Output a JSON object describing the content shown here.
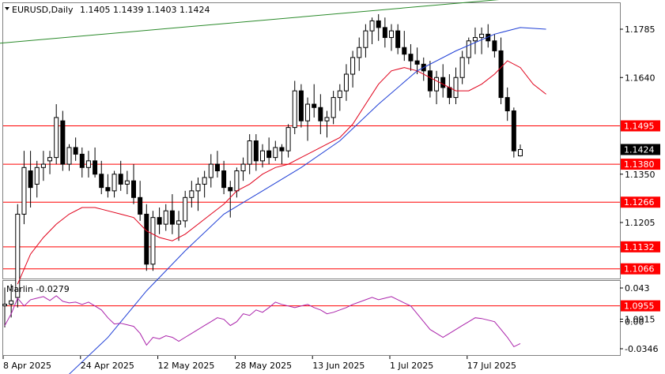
{
  "chart_data": {
    "type": "candlestick",
    "symbol": "EURUSD,Daily",
    "ohlc_label": "1.1405 1.1439 1.1403 1.1424",
    "last_price": "1.1424",
    "colors": {
      "background": "#ffffff",
      "grid": "#c0c0c0",
      "candle_up": "#ffffff",
      "candle_down": "#000000",
      "red_ma": "#e0001a",
      "blue_ma": "#1f3fd6",
      "trend_line": "#2a8a2a",
      "levels": "#ff0000",
      "marlin": "#aa22aa",
      "last_price_box": "#000000"
    },
    "price_ticks": [
      "1.1785",
      "1.1640",
      "1.1350",
      "1.1205",
      "1.0915"
    ],
    "price_ticks_values": [
      1.1785,
      1.164,
      1.135,
      1.1205,
      1.0915
    ],
    "levels": [
      {
        "label": "1.1495",
        "value": 1.1495
      },
      {
        "label": "1.1380",
        "value": 1.138
      },
      {
        "label": "1.1266",
        "value": 1.1266
      },
      {
        "label": "1.1132",
        "value": 1.1132
      },
      {
        "label": "1.1066",
        "value": 1.1066
      },
      {
        "label": "1.0955",
        "value": 1.0955
      }
    ],
    "x_labels": [
      "8 Apr 2025",
      "24 Apr 2025",
      "12 May 2025",
      "28 May 2025",
      "13 Jun 2025",
      "1 Jul 2025",
      "17 Jul 2025"
    ],
    "x_label_index": [
      0,
      12,
      24,
      36,
      48,
      60,
      72
    ],
    "trend_line": {
      "from": [
        0,
        1.1743
      ],
      "to": [
        97,
        1.1908
      ]
    },
    "candles": [
      [
        1.0955,
        1.101,
        1.089,
        1.096
      ],
      [
        1.096,
        1.102,
        1.092,
        1.097
      ],
      [
        1.098,
        1.126,
        1.095,
        1.123
      ],
      [
        1.123,
        1.142,
        1.12,
        1.137
      ],
      [
        1.136,
        1.142,
        1.125,
        1.131
      ],
      [
        1.132,
        1.139,
        1.128,
        1.137
      ],
      [
        1.137,
        1.142,
        1.133,
        1.138
      ],
      [
        1.139,
        1.142,
        1.135,
        1.14
      ],
      [
        1.14,
        1.156,
        1.138,
        1.152
      ],
      [
        1.151,
        1.154,
        1.136,
        1.138
      ],
      [
        1.138,
        1.144,
        1.136,
        1.143
      ],
      [
        1.143,
        1.146,
        1.139,
        1.141
      ],
      [
        1.141,
        1.143,
        1.134,
        1.137
      ],
      [
        1.137,
        1.142,
        1.134,
        1.139
      ],
      [
        1.139,
        1.143,
        1.134,
        1.135
      ],
      [
        1.135,
        1.139,
        1.129,
        1.131
      ],
      [
        1.131,
        1.135,
        1.128,
        1.13
      ],
      [
        1.13,
        1.136,
        1.128,
        1.135
      ],
      [
        1.135,
        1.139,
        1.13,
        1.132
      ],
      [
        1.132,
        1.136,
        1.129,
        1.133
      ],
      [
        1.133,
        1.138,
        1.126,
        1.128
      ],
      [
        1.128,
        1.133,
        1.121,
        1.123
      ],
      [
        1.123,
        1.126,
        1.106,
        1.108
      ],
      [
        1.108,
        1.124,
        1.106,
        1.122
      ],
      [
        1.122,
        1.125,
        1.117,
        1.12
      ],
      [
        1.12,
        1.126,
        1.118,
        1.124
      ],
      [
        1.124,
        1.129,
        1.117,
        1.12
      ],
      [
        1.12,
        1.124,
        1.115,
        1.121
      ],
      [
        1.121,
        1.13,
        1.119,
        1.128
      ],
      [
        1.128,
        1.133,
        1.125,
        1.13
      ],
      [
        1.13,
        1.134,
        1.124,
        1.132
      ],
      [
        1.132,
        1.136,
        1.128,
        1.134
      ],
      [
        1.134,
        1.141,
        1.131,
        1.138
      ],
      [
        1.138,
        1.142,
        1.134,
        1.136
      ],
      [
        1.136,
        1.139,
        1.129,
        1.131
      ],
      [
        1.131,
        1.133,
        1.122,
        1.13
      ],
      [
        1.13,
        1.137,
        1.128,
        1.136
      ],
      [
        1.136,
        1.14,
        1.133,
        1.138
      ],
      [
        1.138,
        1.147,
        1.135,
        1.145
      ],
      [
        1.145,
        1.147,
        1.136,
        1.139
      ],
      [
        1.139,
        1.144,
        1.137,
        1.142
      ],
      [
        1.142,
        1.146,
        1.138,
        1.14
      ],
      [
        1.14,
        1.145,
        1.139,
        1.143
      ],
      [
        1.143,
        1.144,
        1.138,
        1.142
      ],
      [
        1.142,
        1.15,
        1.14,
        1.149
      ],
      [
        1.149,
        1.163,
        1.147,
        1.16
      ],
      [
        1.16,
        1.162,
        1.149,
        1.151
      ],
      [
        1.151,
        1.158,
        1.145,
        1.156
      ],
      [
        1.156,
        1.162,
        1.152,
        1.155
      ],
      [
        1.155,
        1.159,
        1.147,
        1.151
      ],
      [
        1.151,
        1.154,
        1.146,
        1.152
      ],
      [
        1.152,
        1.16,
        1.15,
        1.158
      ],
      [
        1.158,
        1.162,
        1.154,
        1.16
      ],
      [
        1.16,
        1.168,
        1.157,
        1.165
      ],
      [
        1.165,
        1.172,
        1.161,
        1.17
      ],
      [
        1.17,
        1.176,
        1.166,
        1.173
      ],
      [
        1.173,
        1.18,
        1.17,
        1.178
      ],
      [
        1.178,
        1.182,
        1.174,
        1.181
      ],
      [
        1.181,
        1.183,
        1.175,
        1.179
      ],
      [
        1.179,
        1.182,
        1.173,
        1.176
      ],
      [
        1.176,
        1.18,
        1.172,
        1.178
      ],
      [
        1.178,
        1.18,
        1.171,
        1.173
      ],
      [
        1.173,
        1.178,
        1.169,
        1.171
      ],
      [
        1.171,
        1.174,
        1.166,
        1.169
      ],
      [
        1.169,
        1.173,
        1.165,
        1.168
      ],
      [
        1.168,
        1.17,
        1.163,
        1.166
      ],
      [
        1.166,
        1.169,
        1.158,
        1.16
      ],
      [
        1.16,
        1.166,
        1.156,
        1.164
      ],
      [
        1.164,
        1.168,
        1.158,
        1.161
      ],
      [
        1.161,
        1.165,
        1.156,
        1.158
      ],
      [
        1.158,
        1.167,
        1.156,
        1.164
      ],
      [
        1.164,
        1.172,
        1.162,
        1.17
      ],
      [
        1.17,
        1.176,
        1.168,
        1.175
      ],
      [
        1.175,
        1.179,
        1.171,
        1.176
      ],
      [
        1.176,
        1.179,
        1.171,
        1.177
      ],
      [
        1.177,
        1.18,
        1.173,
        1.175
      ],
      [
        1.175,
        1.177,
        1.17,
        1.172
      ],
      [
        1.172,
        1.176,
        1.156,
        1.158
      ],
      [
        1.158,
        1.161,
        1.151,
        1.154
      ],
      [
        1.154,
        1.155,
        1.14,
        1.142
      ],
      [
        1.1405,
        1.1439,
        1.1403,
        1.1424
      ]
    ],
    "red_ma": [
      [
        2,
        1.102
      ],
      [
        4,
        1.111
      ],
      [
        6,
        1.116
      ],
      [
        8,
        1.12
      ],
      [
        10,
        1.123
      ],
      [
        12,
        1.125
      ],
      [
        14,
        1.125
      ],
      [
        16,
        1.124
      ],
      [
        18,
        1.123
      ],
      [
        20,
        1.122
      ],
      [
        22,
        1.118
      ],
      [
        24,
        1.116
      ],
      [
        26,
        1.115
      ],
      [
        28,
        1.117
      ],
      [
        30,
        1.12
      ],
      [
        32,
        1.123
      ],
      [
        34,
        1.126
      ],
      [
        36,
        1.13
      ],
      [
        38,
        1.132
      ],
      [
        40,
        1.135
      ],
      [
        42,
        1.137
      ],
      [
        44,
        1.138
      ],
      [
        46,
        1.14
      ],
      [
        48,
        1.142
      ],
      [
        50,
        1.144
      ],
      [
        52,
        1.146
      ],
      [
        54,
        1.15
      ],
      [
        56,
        1.156
      ],
      [
        58,
        1.162
      ],
      [
        60,
        1.166
      ],
      [
        62,
        1.167
      ],
      [
        64,
        1.166
      ],
      [
        66,
        1.164
      ],
      [
        68,
        1.162
      ],
      [
        70,
        1.16
      ],
      [
        72,
        1.16
      ],
      [
        74,
        1.162
      ],
      [
        76,
        1.165
      ],
      [
        78,
        1.169
      ],
      [
        80,
        1.167
      ],
      [
        82,
        1.162
      ],
      [
        84,
        1.159
      ]
    ],
    "blue_ma": [
      [
        10,
        1.075
      ],
      [
        16,
        1.086
      ],
      [
        22,
        1.1
      ],
      [
        28,
        1.112
      ],
      [
        34,
        1.123
      ],
      [
        40,
        1.13
      ],
      [
        46,
        1.137
      ],
      [
        52,
        1.145
      ],
      [
        58,
        1.156
      ],
      [
        64,
        1.166
      ],
      [
        70,
        1.172
      ],
      [
        76,
        1.177
      ],
      [
        80,
        1.179
      ],
      [
        84,
        1.1785
      ]
    ],
    "marlin": {
      "label": "Marlin -0.0279",
      "ticks": [
        "0.043",
        "0.00",
        "-0.0346"
      ],
      "ticks_values": [
        0.043,
        0.0,
        -0.0346
      ],
      "values": [
        -0.005,
        0.01,
        0.03,
        0.02,
        0.028,
        0.03,
        0.032,
        0.027,
        0.033,
        0.026,
        0.024,
        0.025,
        0.022,
        0.025,
        0.02,
        0.015,
        0.005,
        -0.003,
        -0.002,
        -0.004,
        -0.006,
        -0.015,
        -0.03,
        -0.02,
        -0.022,
        -0.018,
        -0.02,
        -0.025,
        -0.02,
        -0.015,
        -0.01,
        -0.005,
        0.0,
        0.005,
        0.003,
        -0.005,
        0.0,
        0.01,
        0.008,
        0.015,
        0.012,
        0.018,
        0.025,
        0.022,
        0.02,
        0.018,
        0.02,
        0.022,
        0.018,
        0.015,
        0.01,
        0.012,
        0.015,
        0.018,
        0.022,
        0.025,
        0.028,
        0.031,
        0.028,
        0.03,
        0.032,
        0.028,
        0.024,
        0.02,
        0.01,
        0.0,
        -0.01,
        -0.015,
        -0.02,
        -0.015,
        -0.01,
        -0.005,
        0.0,
        0.005,
        0.004,
        0.002,
        0.0,
        -0.01,
        -0.02,
        -0.032,
        -0.0279
      ]
    }
  }
}
